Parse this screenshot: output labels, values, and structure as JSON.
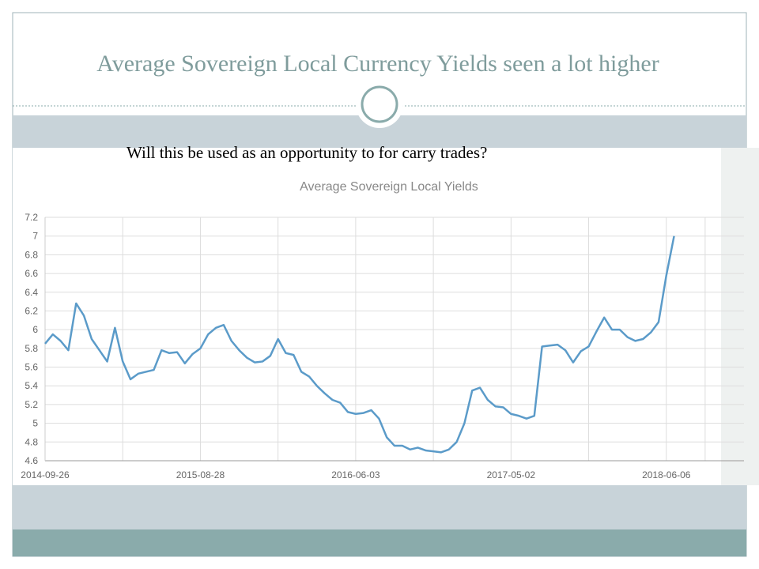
{
  "slide": {
    "title": "Average Sovereign Local Currency Yields  seen a lot higher",
    "subtitle": "Will this be used as an opportunity to for carry trades?"
  },
  "chart_data": {
    "type": "line",
    "title": "Average Sovereign Local Yields",
    "x": [
      0,
      1,
      2,
      3,
      4,
      5,
      6,
      7,
      8,
      9,
      10,
      11,
      12,
      13,
      14,
      15,
      16,
      17,
      18,
      19,
      20,
      21,
      22,
      23,
      24,
      25,
      26,
      27,
      28,
      29,
      30,
      31,
      32,
      33,
      34,
      35,
      36,
      37,
      38,
      39,
      40,
      41,
      42,
      43,
      44,
      45,
      46,
      47,
      48,
      49,
      50,
      51,
      52,
      53,
      54,
      55,
      56,
      57,
      58,
      59,
      60,
      61,
      62,
      63,
      64,
      65,
      66,
      67,
      68,
      69,
      70,
      71,
      72,
      73,
      74,
      75,
      76,
      77,
      78,
      79,
      80,
      81
    ],
    "series": [
      {
        "name": "Average Sovereign Local Yields",
        "color": "#5b9bc9",
        "values": [
          5.85,
          5.95,
          5.88,
          5.78,
          6.28,
          6.15,
          5.9,
          5.78,
          5.66,
          6.02,
          5.66,
          5.47,
          5.53,
          5.55,
          5.57,
          5.78,
          5.75,
          5.76,
          5.64,
          5.74,
          5.8,
          5.95,
          6.02,
          6.05,
          5.88,
          5.78,
          5.7,
          5.65,
          5.66,
          5.72,
          5.9,
          5.75,
          5.73,
          5.55,
          5.5,
          5.4,
          5.32,
          5.25,
          5.22,
          5.12,
          5.1,
          5.11,
          5.14,
          5.05,
          4.85,
          4.76,
          4.76,
          4.72,
          4.74,
          4.71,
          4.7,
          4.69,
          4.72,
          4.8,
          5.0,
          5.35,
          5.38,
          5.25,
          5.18,
          5.17,
          5.1,
          5.08,
          5.05,
          5.08,
          5.82,
          5.83,
          5.84,
          5.78,
          5.65,
          5.77,
          5.82,
          5.98,
          6.13,
          6.0,
          6.0,
          5.92,
          5.88,
          5.9,
          5.97,
          6.08,
          6.58,
          7.0
        ]
      }
    ],
    "xlim": [
      0,
      90
    ],
    "xticks": [
      {
        "value": 0,
        "label": "2014-09-26"
      },
      {
        "value": 20,
        "label": "2015-08-28"
      },
      {
        "value": 40,
        "label": "2016-06-03"
      },
      {
        "value": 60,
        "label": "2017-05-02"
      },
      {
        "value": 80,
        "label": "2018-06-06"
      }
    ],
    "ylim": [
      4.6,
      7.2
    ],
    "yticks": [
      4.6,
      4.8,
      5,
      5.2,
      5.4,
      5.6,
      5.8,
      6,
      6.2,
      6.4,
      6.6,
      6.8,
      7,
      7.2
    ],
    "grid": true
  }
}
